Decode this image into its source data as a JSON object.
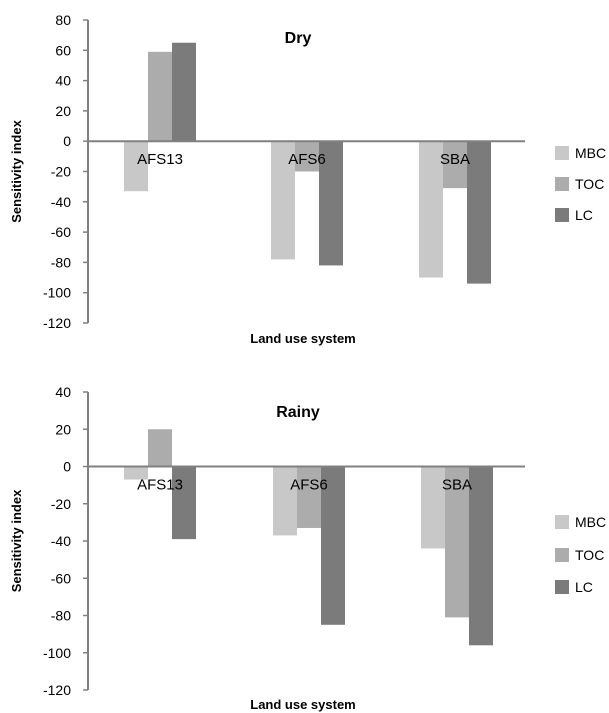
{
  "chart_data": [
    {
      "type": "bar",
      "title": "Dry",
      "xlabel": "Land use system",
      "ylabel": "Sensitivity index",
      "ylim": [
        -120,
        80
      ],
      "yticks": [
        80,
        60,
        40,
        20,
        0,
        -20,
        -40,
        -60,
        -80,
        -100,
        -120
      ],
      "categories": [
        "AFS13",
        "AFS6",
        "SBA"
      ],
      "series": [
        {
          "name": "MBC",
          "color": "#c8c8c8",
          "values": [
            -33,
            -78,
            -90
          ]
        },
        {
          "name": "TOC",
          "color": "#acacac",
          "values": [
            59,
            -20,
            -31
          ]
        },
        {
          "name": "LC",
          "color": "#7b7b7b",
          "values": [
            65,
            -82,
            -94
          ]
        }
      ],
      "legend": "right",
      "grid": false
    },
    {
      "type": "bar",
      "title": "Rainy",
      "xlabel": "Land use system",
      "ylabel": "Sensitivity index",
      "ylim": [
        -120,
        40
      ],
      "yticks": [
        40,
        20,
        0,
        -20,
        -40,
        -60,
        -80,
        -100,
        -120
      ],
      "categories": [
        "AFS13",
        "AFS6",
        "SBA"
      ],
      "series": [
        {
          "name": "MBC",
          "color": "#c8c8c8",
          "values": [
            -7,
            -37,
            -44
          ]
        },
        {
          "name": "TOC",
          "color": "#acacac",
          "values": [
            20,
            -33,
            -81
          ]
        },
        {
          "name": "LC",
          "color": "#7b7b7b",
          "values": [
            -39,
            -85,
            -96
          ]
        }
      ],
      "legend": "right",
      "grid": false
    }
  ]
}
